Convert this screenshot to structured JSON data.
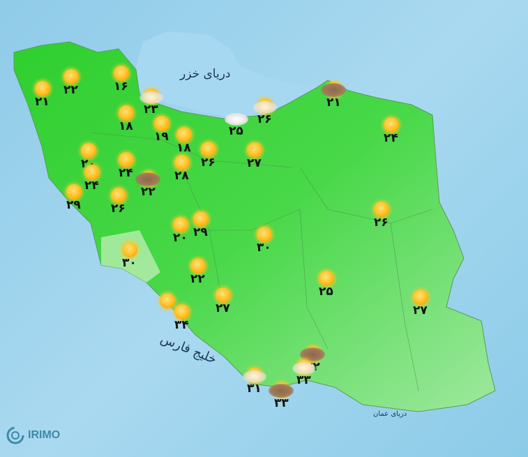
{
  "labels": {
    "caspian": "دریای خزر",
    "persian_gulf": "خلیج فارس",
    "oman_sea": "دریای عمان"
  },
  "logo": "IRIMO",
  "colors": {
    "sea": "#a9d9f0",
    "land": "#3fd23f",
    "text": "#111111"
  },
  "stations": [
    {
      "value": "۲۱",
      "icon": "sunny"
    },
    {
      "value": "۲۲",
      "icon": "sunny"
    },
    {
      "value": "۱۶",
      "icon": "sunny"
    },
    {
      "value": "۲۳",
      "icon": "partly-cloudy"
    },
    {
      "value": "۱۸",
      "icon": "sunny"
    },
    {
      "value": "۱۹",
      "icon": "sunny"
    },
    {
      "value": "۱۸",
      "icon": "sunny"
    },
    {
      "value": "۲۵",
      "icon": "cloudy"
    },
    {
      "value": "۲۶",
      "icon": "partly-cloudy"
    },
    {
      "value": "۲۱",
      "icon": "dust"
    },
    {
      "value": "۲۴",
      "icon": "sunny"
    },
    {
      "value": "۲۰",
      "icon": "sunny"
    },
    {
      "value": "۲۴",
      "icon": "sunny"
    },
    {
      "value": "۲۶",
      "icon": "sunny"
    },
    {
      "value": "۲۸",
      "icon": "sunny"
    },
    {
      "value": "۲۷",
      "icon": "sunny"
    },
    {
      "value": "۲۴",
      "icon": "sunny"
    },
    {
      "value": "۲۲",
      "icon": "dust"
    },
    {
      "value": "۲۹",
      "icon": "sunny"
    },
    {
      "value": "۲۶",
      "icon": "sunny"
    },
    {
      "value": "۲۶",
      "icon": "sunny"
    },
    {
      "value": "۲۰",
      "icon": "sunny"
    },
    {
      "value": "۲۹",
      "icon": "sunny"
    },
    {
      "value": "۳۰",
      "icon": "sunny"
    },
    {
      "value": "۳۰",
      "icon": "sunny"
    },
    {
      "value": "۲۲",
      "icon": "sunny"
    },
    {
      "value": "۲۵",
      "icon": "sunny"
    },
    {
      "value": "۲۷",
      "icon": "sunny"
    },
    {
      "value": "۲۷",
      "icon": "sunny"
    },
    {
      "value": "",
      "icon": "sunny"
    },
    {
      "value": "۳۴",
      "icon": "sunny"
    },
    {
      "value": "۳۲",
      "icon": "dust"
    },
    {
      "value": "۳۳",
      "icon": "partly-cloudy"
    },
    {
      "value": "۳۱",
      "icon": "partly-cloudy"
    },
    {
      "value": "۳۳",
      "icon": "dust"
    }
  ]
}
